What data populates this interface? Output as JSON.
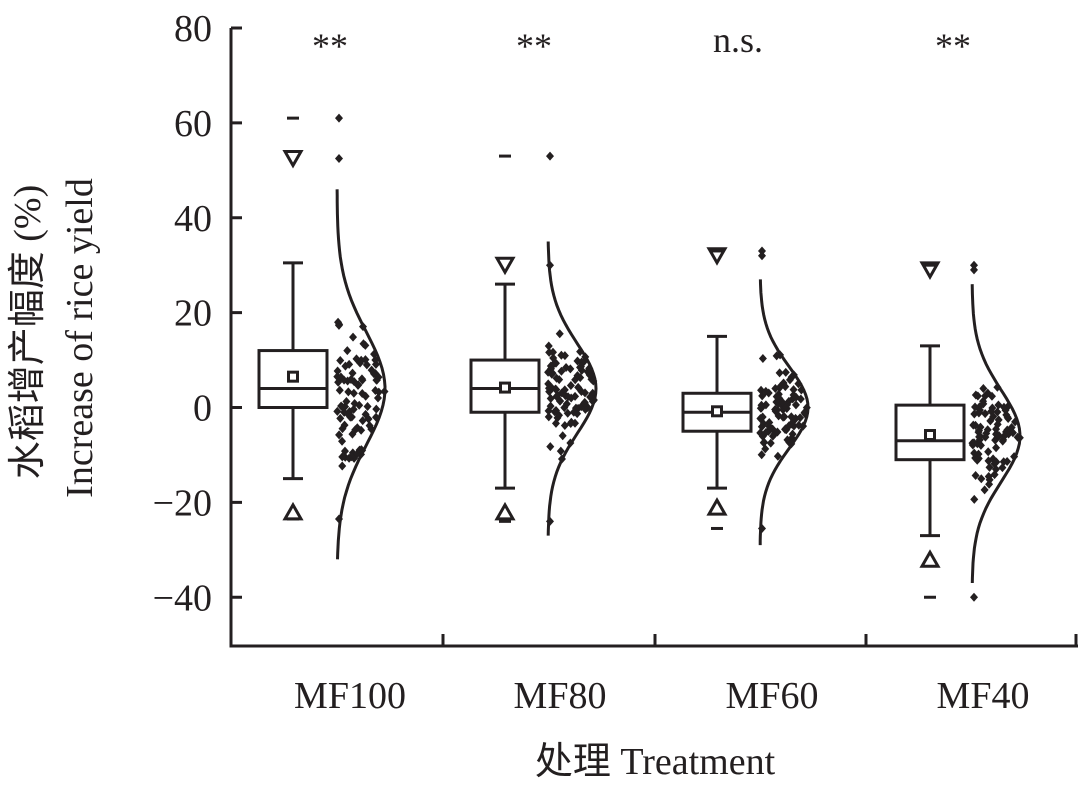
{
  "chart_data": {
    "type": "box",
    "xlabel": "处理 Treatment",
    "ylabel_cn": "水稻增产幅度 (%)",
    "ylabel_en": "Increase of rice yield",
    "ylim": [
      -50,
      80
    ],
    "yticks": [
      80,
      60,
      40,
      20,
      0,
      -20,
      -40
    ],
    "ytick_labels": [
      "80",
      "60",
      "40",
      "20",
      "0",
      "−20",
      "−40"
    ],
    "categories": [
      "MF100",
      "MF80",
      "MF60",
      "MF40"
    ],
    "significance": [
      "**",
      "**",
      "n.s.",
      "**"
    ],
    "groups": [
      {
        "name": "MF100",
        "q1": 0,
        "median": 4,
        "q3": 12,
        "mean": 6.5,
        "whisker_low": -15,
        "whisker_high": 30.5,
        "p1": -22,
        "p99": 52.5,
        "min": -23.5,
        "max": 61,
        "dist_range": [
          -32,
          46
        ],
        "dist_center": 4
      },
      {
        "name": "MF80",
        "q1": -1,
        "median": 4,
        "q3": 10,
        "mean": 4.2,
        "whisker_low": -17,
        "whisker_high": 26,
        "p1": -22,
        "p99": 30,
        "min": -24,
        "max": 53,
        "dist_range": [
          -27,
          35
        ],
        "dist_center": 4
      },
      {
        "name": "MF60",
        "q1": -5,
        "median": -1,
        "q3": 3,
        "mean": -0.8,
        "whisker_low": -17,
        "whisker_high": 15,
        "p1": -21,
        "p99": 32,
        "min": -25.5,
        "max": 33,
        "dist_range": [
          -29,
          27
        ],
        "dist_center": 0
      },
      {
        "name": "MF40",
        "q1": -11,
        "median": -7,
        "q3": 0.5,
        "mean": -5.8,
        "whisker_low": -27,
        "whisker_high": 13,
        "p1": -32,
        "p99": 29,
        "min": -40,
        "max": 30,
        "dist_range": [
          -37,
          26
        ],
        "dist_center": -6
      }
    ]
  }
}
